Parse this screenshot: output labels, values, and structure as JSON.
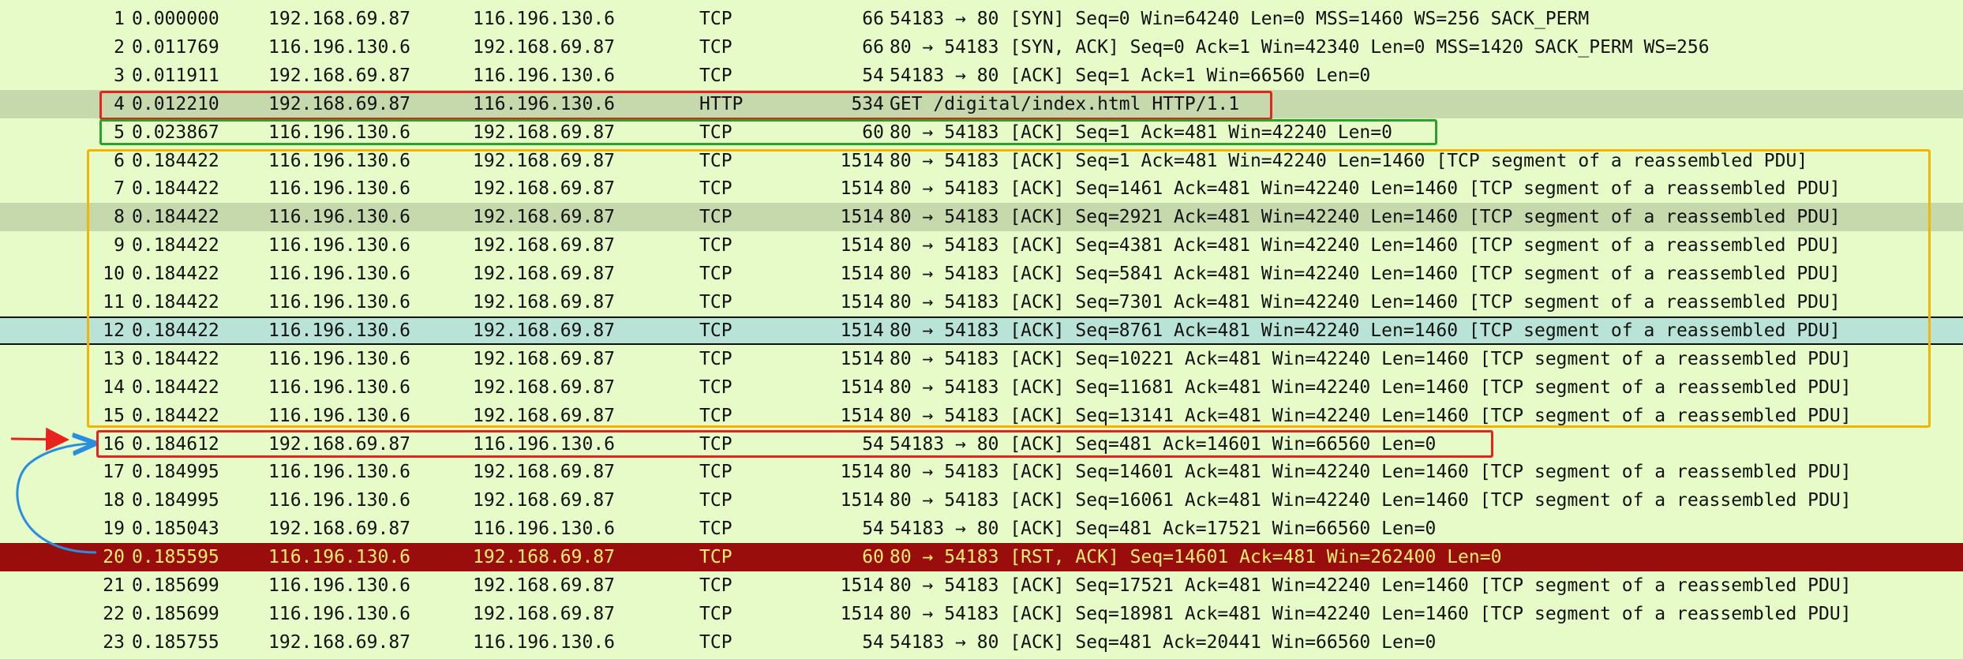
{
  "packets": [
    {
      "no": "1",
      "time": "0.000000",
      "source": "192.168.69.87",
      "destination": "116.196.130.6",
      "protocol": "TCP",
      "length": "66",
      "info": "54183 → 80 [SYN] Seq=0 Win=64240 Len=0 MSS=1460 WS=256 SACK_PERM"
    },
    {
      "no": "2",
      "time": "0.011769",
      "source": "116.196.130.6",
      "destination": "192.168.69.87",
      "protocol": "TCP",
      "length": "66",
      "info": "80 → 54183 [SYN, ACK] Seq=0 Ack=1 Win=42340 Len=0 MSS=1420 SACK_PERM WS=256"
    },
    {
      "no": "3",
      "time": "0.011911",
      "source": "192.168.69.87",
      "destination": "116.196.130.6",
      "protocol": "TCP",
      "length": "54",
      "info": "54183 → 80 [ACK] Seq=1 Ack=1 Win=66560 Len=0"
    },
    {
      "no": "4",
      "time": "0.012210",
      "source": "192.168.69.87",
      "destination": "116.196.130.6",
      "protocol": "HTTP",
      "length": "534",
      "info": "GET /digital/index.html HTTP/1.1"
    },
    {
      "no": "5",
      "time": "0.023867",
      "source": "116.196.130.6",
      "destination": "192.168.69.87",
      "protocol": "TCP",
      "length": "60",
      "info": "80 → 54183 [ACK] Seq=1 Ack=481 Win=42240 Len=0"
    },
    {
      "no": "6",
      "time": "0.184422",
      "source": "116.196.130.6",
      "destination": "192.168.69.87",
      "protocol": "TCP",
      "length": "1514",
      "info": "80 → 54183 [ACK] Seq=1 Ack=481 Win=42240 Len=1460 [TCP segment of a reassembled PDU]"
    },
    {
      "no": "7",
      "time": "0.184422",
      "source": "116.196.130.6",
      "destination": "192.168.69.87",
      "protocol": "TCP",
      "length": "1514",
      "info": "80 → 54183 [ACK] Seq=1461 Ack=481 Win=42240 Len=1460 [TCP segment of a reassembled PDU]"
    },
    {
      "no": "8",
      "time": "0.184422",
      "source": "116.196.130.6",
      "destination": "192.168.69.87",
      "protocol": "TCP",
      "length": "1514",
      "info": "80 → 54183 [ACK] Seq=2921 Ack=481 Win=42240 Len=1460 [TCP segment of a reassembled PDU]"
    },
    {
      "no": "9",
      "time": "0.184422",
      "source": "116.196.130.6",
      "destination": "192.168.69.87",
      "protocol": "TCP",
      "length": "1514",
      "info": "80 → 54183 [ACK] Seq=4381 Ack=481 Win=42240 Len=1460 [TCP segment of a reassembled PDU]"
    },
    {
      "no": "10",
      "time": "0.184422",
      "source": "116.196.130.6",
      "destination": "192.168.69.87",
      "protocol": "TCP",
      "length": "1514",
      "info": "80 → 54183 [ACK] Seq=5841 Ack=481 Win=42240 Len=1460 [TCP segment of a reassembled PDU]"
    },
    {
      "no": "11",
      "time": "0.184422",
      "source": "116.196.130.6",
      "destination": "192.168.69.87",
      "protocol": "TCP",
      "length": "1514",
      "info": "80 → 54183 [ACK] Seq=7301 Ack=481 Win=42240 Len=1460 [TCP segment of a reassembled PDU]"
    },
    {
      "no": "12",
      "time": "0.184422",
      "source": "116.196.130.6",
      "destination": "192.168.69.87",
      "protocol": "TCP",
      "length": "1514",
      "info": "80 → 54183 [ACK] Seq=8761 Ack=481 Win=42240 Len=1460 [TCP segment of a reassembled PDU]"
    },
    {
      "no": "13",
      "time": "0.184422",
      "source": "116.196.130.6",
      "destination": "192.168.69.87",
      "protocol": "TCP",
      "length": "1514",
      "info": "80 → 54183 [ACK] Seq=10221 Ack=481 Win=42240 Len=1460 [TCP segment of a reassembled PDU]"
    },
    {
      "no": "14",
      "time": "0.184422",
      "source": "116.196.130.6",
      "destination": "192.168.69.87",
      "protocol": "TCP",
      "length": "1514",
      "info": "80 → 54183 [ACK] Seq=11681 Ack=481 Win=42240 Len=1460 [TCP segment of a reassembled PDU]"
    },
    {
      "no": "15",
      "time": "0.184422",
      "source": "116.196.130.6",
      "destination": "192.168.69.87",
      "protocol": "TCP",
      "length": "1514",
      "info": "80 → 54183 [ACK] Seq=13141 Ack=481 Win=42240 Len=1460 [TCP segment of a reassembled PDU]"
    },
    {
      "no": "16",
      "time": "0.184612",
      "source": "192.168.69.87",
      "destination": "116.196.130.6",
      "protocol": "TCP",
      "length": "54",
      "info": "54183 → 80 [ACK] Seq=481 Ack=14601 Win=66560 Len=0"
    },
    {
      "no": "17",
      "time": "0.184995",
      "source": "116.196.130.6",
      "destination": "192.168.69.87",
      "protocol": "TCP",
      "length": "1514",
      "info": "80 → 54183 [ACK] Seq=14601 Ack=481 Win=42240 Len=1460 [TCP segment of a reassembled PDU]"
    },
    {
      "no": "18",
      "time": "0.184995",
      "source": "116.196.130.6",
      "destination": "192.168.69.87",
      "protocol": "TCP",
      "length": "1514",
      "info": "80 → 54183 [ACK] Seq=16061 Ack=481 Win=42240 Len=1460 [TCP segment of a reassembled PDU]"
    },
    {
      "no": "19",
      "time": "0.185043",
      "source": "192.168.69.87",
      "destination": "116.196.130.6",
      "protocol": "TCP",
      "length": "54",
      "info": "54183 → 80 [ACK] Seq=481 Ack=17521 Win=66560 Len=0"
    },
    {
      "no": "20",
      "time": "0.185595",
      "source": "116.196.130.6",
      "destination": "192.168.69.87",
      "protocol": "TCP",
      "length": "60",
      "info": "80 → 54183 [RST, ACK] Seq=14601 Ack=481 Win=262400 Len=0"
    },
    {
      "no": "21",
      "time": "0.185699",
      "source": "116.196.130.6",
      "destination": "192.168.69.87",
      "protocol": "TCP",
      "length": "1514",
      "info": "80 → 54183 [ACK] Seq=17521 Ack=481 Win=42240 Len=1460 [TCP segment of a reassembled PDU]"
    },
    {
      "no": "22",
      "time": "0.185699",
      "source": "116.196.130.6",
      "destination": "192.168.69.87",
      "protocol": "TCP",
      "length": "1514",
      "info": "80 → 54183 [ACK] Seq=18981 Ack=481 Win=42240 Len=1460 [TCP segment of a reassembled PDU]"
    },
    {
      "no": "23",
      "time": "0.185755",
      "source": "192.168.69.87",
      "destination": "116.196.130.6",
      "protocol": "TCP",
      "length": "54",
      "info": "54183 → 80 [ACK] Seq=481 Ack=20441 Win=66560 Len=0"
    }
  ],
  "colors": {
    "tcp_row": "#e6fbc8",
    "selected_row": "#c6d9ad",
    "current_row": "#b9e3d6",
    "rst_row": "#990d0d",
    "rst_text": "#f6ee6e",
    "annotation_red": "#e8231d",
    "annotation_green": "#2aa12a",
    "annotation_orange": "#f5b400",
    "annotation_blue": "#2a8ee0"
  }
}
